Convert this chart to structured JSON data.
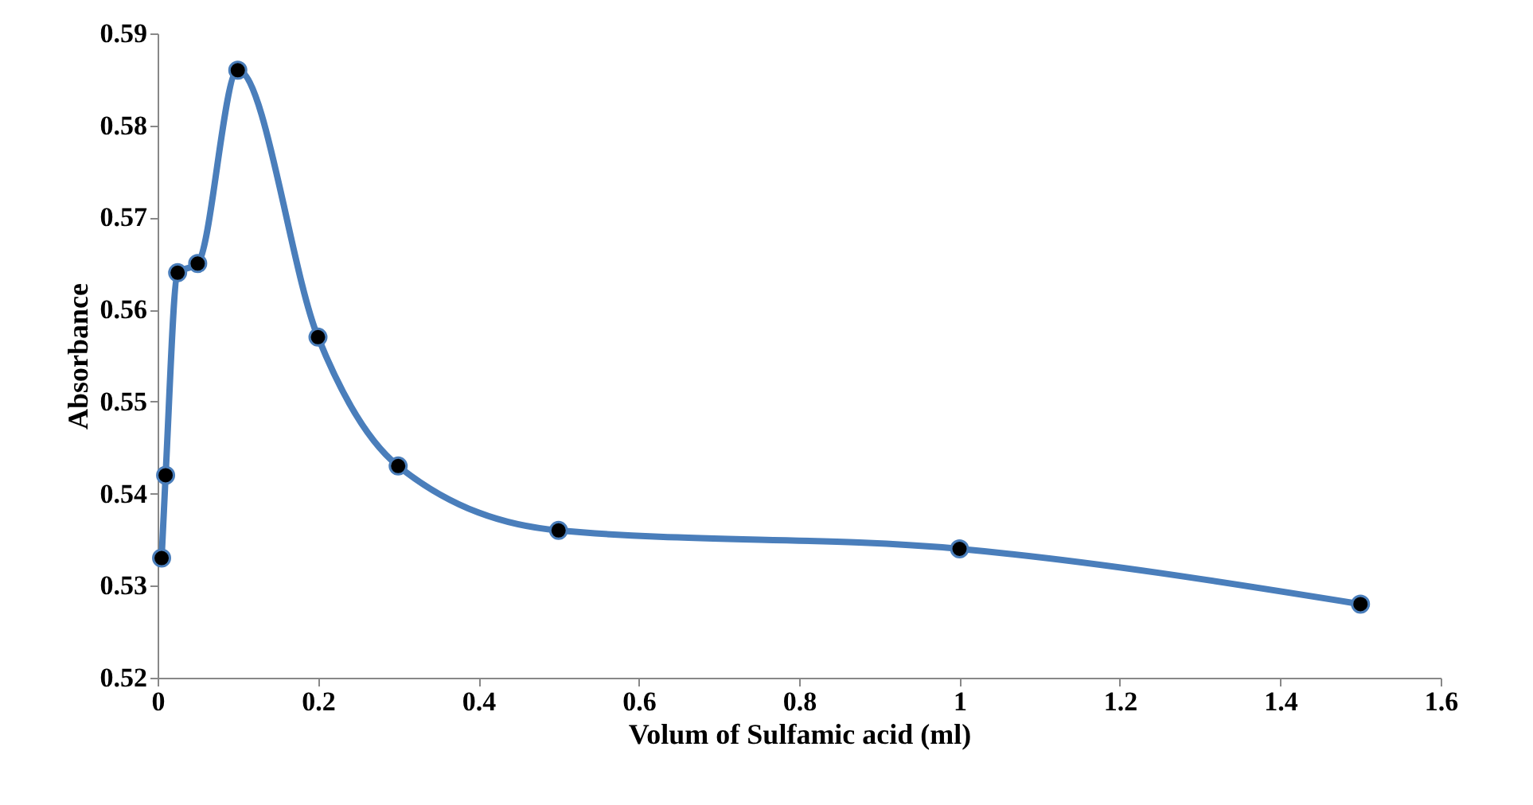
{
  "chart_data": {
    "type": "line",
    "xlabel": "Volum of Sulfamic acid (ml)",
    "ylabel": "Absorbance",
    "x": [
      0.005,
      0.01,
      0.025,
      0.05,
      0.1,
      0.2,
      0.3,
      0.5,
      1.0,
      1.5
    ],
    "series": [
      {
        "color": "#4a7ebb",
        "values": [
          0.533,
          0.542,
          0.564,
          0.565,
          0.586,
          0.557,
          0.543,
          0.536,
          0.534,
          0.528
        ]
      }
    ],
    "xlim": [
      0,
      1.6
    ],
    "xticks": [
      0,
      0.2,
      0.4,
      0.6,
      0.8,
      1,
      1.2,
      1.4,
      1.6
    ],
    "ylim": [
      0.52,
      0.59
    ],
    "yticks": [
      0.52,
      0.53,
      0.54,
      0.55,
      0.56,
      0.57,
      0.58,
      0.59
    ],
    "grid": false,
    "marker": "circle",
    "line_style": "solid"
  }
}
